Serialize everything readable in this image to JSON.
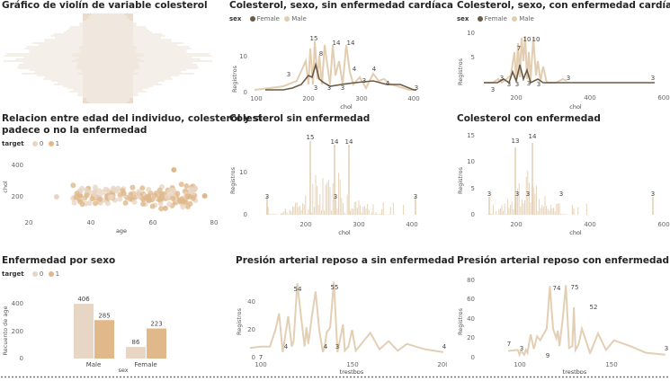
{
  "colors": {
    "female": "#6b5a45",
    "male": "#e3cdb1",
    "t0": "#e8d6c4",
    "t1": "#e0b88a",
    "line": "#e2cfb4",
    "axis_text": "#666666"
  },
  "panels": {
    "violin": {
      "title": "Gráfico de violín de variable colesterol"
    },
    "sex_no_disease": {
      "title": "Colesterol, sexo, sin enfermedad cardíaca",
      "legend_title": "sex",
      "legend_items": [
        "Female",
        "Male"
      ],
      "ylabel": "Registros",
      "xlabel": "chol",
      "xticks": [
        "100",
        "200",
        "300",
        "400"
      ],
      "yticks": [
        "0",
        "10"
      ],
      "labels": [
        "15",
        "8",
        "14",
        "14",
        "3",
        "3",
        "3",
        "3",
        "4",
        "4",
        "4",
        "3",
        "3"
      ]
    },
    "sex_disease": {
      "title": "Colesterol, sexo, con enfermedad cardíaca",
      "legend_title": "sex",
      "legend_items": [
        "Female",
        "Male"
      ],
      "ylabel": "Registros",
      "xlabel": "chol",
      "xticks": [
        "200",
        "400",
        "600"
      ],
      "yticks": [
        "5",
        "10"
      ],
      "labels": [
        "7",
        "10",
        "10",
        "3",
        "3",
        "3",
        "3",
        "3",
        "3",
        "3",
        "3"
      ]
    },
    "age_scatter": {
      "title_line1": "Relacion entre edad del individuo, colesterol y si",
      "title_line2": "padece o no la enfermedad",
      "legend_title": "target",
      "legend_items": [
        "0",
        "1"
      ],
      "ylabel": "chol",
      "xlabel": "age",
      "xticks": [
        "20",
        "40",
        "60",
        "80"
      ],
      "yticks": [
        "200",
        "400"
      ]
    },
    "chol_no_disease": {
      "title": "Colesterol sin enfermedad",
      "ylabel": "Registros",
      "xlabel": "chol",
      "xticks": [
        "200",
        "300",
        "400"
      ],
      "yticks": [
        "0",
        "10"
      ],
      "labels": [
        "15",
        "14",
        "14",
        "3",
        "3",
        "3"
      ]
    },
    "chol_disease": {
      "title": "Colesterol con enfermedad",
      "ylabel": "Registros",
      "xlabel": "chol",
      "xticks": [
        "200",
        "400",
        "600"
      ],
      "yticks": [
        "0",
        "5",
        "10",
        "15"
      ],
      "labels": [
        "13",
        "14",
        "3",
        "3",
        "3",
        "3",
        "3"
      ]
    },
    "by_sex": {
      "title": "Enfermedad por sexo",
      "legend_title": "target",
      "legend_items": [
        "0",
        "1"
      ],
      "ylabel": "Recuento de age",
      "xlabel": "sex",
      "yticks": [
        "0",
        "200",
        "400"
      ]
    },
    "bp_no_disease": {
      "title": "Presión arterial reposo a sin enfermedad",
      "ylabel": "Registros",
      "xlabel": "trestbps",
      "xticks": [
        "100",
        "150",
        "200"
      ],
      "yticks": [
        "0",
        "20",
        "40"
      ],
      "labels": [
        "54",
        "55",
        "7",
        "4",
        "4",
        "3",
        "4"
      ]
    },
    "bp_disease": {
      "title": "Presión arterial reposo con enfermedad",
      "ylabel": "Registros",
      "xlabel": "trestbps",
      "xticks": [
        "100",
        "150"
      ],
      "yticks": [
        "0",
        "20",
        "40",
        "60",
        "80"
      ],
      "labels": [
        "74",
        "75",
        "52",
        "7",
        "3",
        "9",
        "3"
      ]
    }
  },
  "chart_data": [
    {
      "type": "bar",
      "title": "Enfermedad por sexo",
      "xlabel": "sex",
      "ylabel": "Recuento de age",
      "categories": [
        "Male",
        "Female"
      ],
      "series": [
        {
          "name": "0",
          "values": [
            406,
            86
          ]
        },
        {
          "name": "1",
          "values": [
            285,
            223
          ]
        }
      ],
      "ylim": [
        0,
        450
      ],
      "legend": "top-left",
      "grid": false
    },
    {
      "type": "line",
      "title": "Presión arterial reposo a sin enfermedad",
      "xlabel": "trestbps",
      "ylabel": "Registros",
      "x": [
        94,
        100,
        105,
        108,
        110,
        112,
        115,
        117,
        118,
        120,
        122,
        124,
        125,
        126,
        128,
        130,
        132,
        134,
        135,
        136,
        138,
        140,
        142,
        145,
        146,
        148,
        150,
        152,
        155,
        160,
        165,
        170,
        175,
        180,
        190,
        200
      ],
      "series": [
        {
          "values": [
            7,
            8,
            8,
            20,
            32,
            4,
            30,
            8,
            12,
            54,
            30,
            8,
            22,
            10,
            30,
            48,
            20,
            4,
            8,
            18,
            22,
            55,
            4,
            24,
            5,
            8,
            20,
            5,
            10,
            18,
            6,
            12,
            5,
            10,
            6,
            4
          ]
        }
      ],
      "xlim": [
        100,
        200
      ],
      "ylim": [
        0,
        60
      ]
    },
    {
      "type": "line",
      "title": "Presión arterial reposo con enfermedad",
      "xlabel": "trestbps",
      "ylabel": "Registros",
      "x": [
        94,
        100,
        101,
        102,
        104,
        105,
        106,
        108,
        110,
        112,
        114,
        116,
        118,
        120,
        122,
        124,
        125,
        126,
        128,
        130,
        132,
        134,
        135,
        136,
        138,
        140,
        145,
        146,
        150,
        155,
        160,
        170,
        180,
        192
      ],
      "series": [
        {
          "values": [
            7,
            8,
            3,
            7,
            3,
            8,
            5,
            24,
            9,
            22,
            18,
            24,
            30,
            74,
            30,
            20,
            28,
            12,
            40,
            75,
            10,
            12,
            52,
            8,
            14,
            30,
            5,
            8,
            25,
            8,
            18,
            12,
            5,
            3
          ]
        }
      ],
      "xlim": [
        90,
        195
      ],
      "ylim": [
        0,
        80
      ]
    }
  ]
}
